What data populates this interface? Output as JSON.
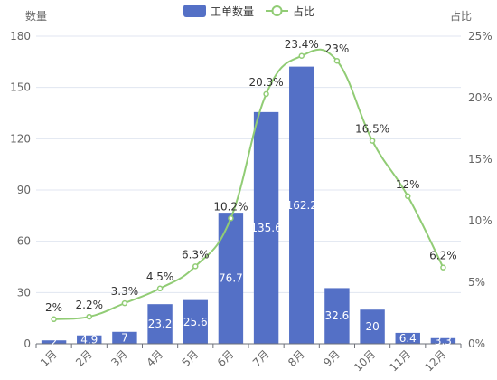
{
  "chart_data": {
    "type": "bar",
    "categories": [
      "1月",
      "2月",
      "3月",
      "4月",
      "5月",
      "6月",
      "7月",
      "8月",
      "9月",
      "10月",
      "11月",
      "12月"
    ],
    "series": [
      {
        "name": "工单数量",
        "type": "bar",
        "axis": "left",
        "color": "#5470c6",
        "values": [
          2,
          4.9,
          7,
          23.2,
          25.6,
          76.7,
          135.6,
          162.2,
          32.6,
          20,
          6.4,
          3.3
        ],
        "labels": [
          "2",
          "4.9",
          "7",
          "23.2",
          "25.6",
          "76.7",
          "135.6",
          "162.2",
          "32.6",
          "20",
          "6.4",
          "3.3"
        ]
      },
      {
        "name": "占比",
        "type": "line",
        "axis": "right",
        "color": "#91cc75",
        "values": [
          2,
          2.2,
          3.3,
          4.5,
          6.3,
          10.2,
          20.3,
          23.4,
          23,
          16.5,
          12,
          6.2
        ],
        "labels": [
          "2%",
          "2.2%",
          "3.3%",
          "4.5%",
          "6.3%",
          "10.2%",
          "20.3%",
          "23.4%",
          "23%",
          "16.5%",
          "12%",
          "6.2%"
        ]
      }
    ],
    "y_left": {
      "label": "数量",
      "ylim": [
        0,
        180
      ],
      "ticks": [
        0,
        30,
        60,
        90,
        120,
        150,
        180
      ],
      "tick_labels": [
        "0",
        "30",
        "60",
        "90",
        "120",
        "150",
        "180"
      ]
    },
    "y_right": {
      "label": "占比",
      "ylim": [
        0,
        25
      ],
      "ticks": [
        0,
        5,
        10,
        15,
        20,
        25
      ],
      "tick_labels": [
        "0%",
        "5%",
        "10%",
        "15%",
        "20%",
        "25%"
      ]
    },
    "grid": true,
    "legend_position": "top-center"
  }
}
